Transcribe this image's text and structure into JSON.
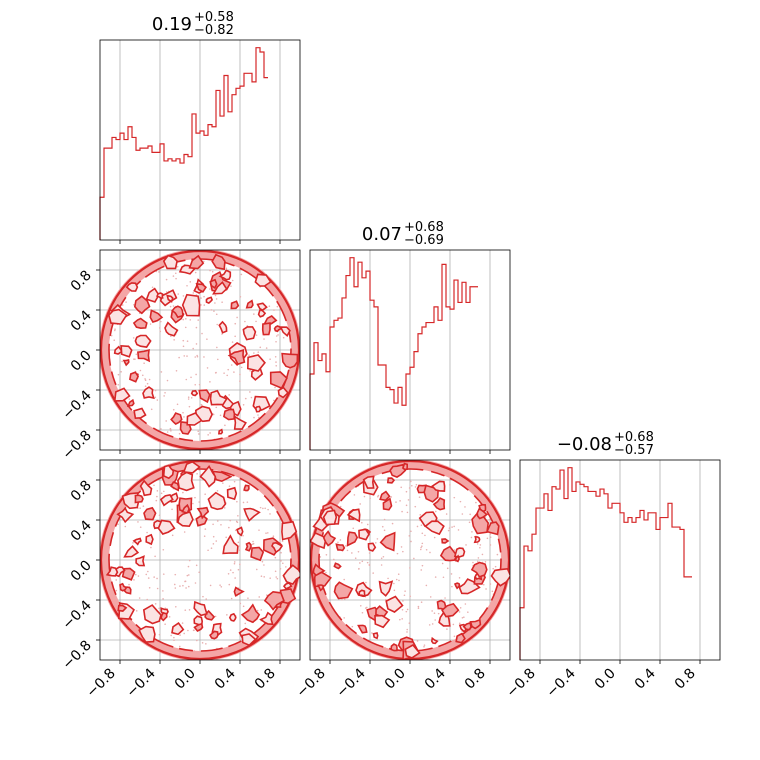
{
  "chart_data": {
    "type": "corner",
    "color": "#d62728",
    "fill_color": "#f4a6a6",
    "grid": true,
    "axis_range": [
      -1.0,
      1.0
    ],
    "tick_values": [
      -0.8,
      -0.4,
      0.0,
      0.4,
      0.8
    ],
    "tick_labels": [
      "−0.8",
      "−0.4",
      "0.0",
      "0.4",
      "0.8"
    ],
    "histograms": [
      {
        "title": {
          "median": "0.19",
          "plus": "+0.58",
          "minus": "−0.82"
        },
        "bin_edges_start": -1.0,
        "bin_width": 0.04,
        "values": [
          20,
          43,
          43,
          48,
          47,
          50,
          47,
          53,
          48,
          42,
          43,
          43,
          44,
          41,
          41,
          45,
          37,
          38,
          37,
          38,
          36,
          40,
          39,
          59,
          50,
          51,
          49,
          54,
          53,
          70,
          58,
          77,
          60,
          68,
          71,
          72,
          78,
          78,
          74,
          90,
          88,
          76
        ]
      },
      {
        "title": {
          "median": "0.07",
          "plus": "+0.68",
          "minus": "−0.69"
        },
        "bin_edges_start": -1.0,
        "bin_width": 0.04,
        "values": [
          34,
          48,
          40,
          43,
          35,
          55,
          58,
          59,
          68,
          78,
          86,
          73,
          84,
          77,
          80,
          67,
          64,
          38,
          38,
          28,
          27,
          21,
          28,
          20,
          34,
          37,
          44,
          52,
          55,
          57,
          57,
          64,
          58,
          83,
          64,
          63,
          76,
          66,
          75,
          66,
          73,
          73
        ]
      },
      {
        "title": {
          "median": "−0.08",
          "plus": "+0.68",
          "minus": "−0.57"
        },
        "bin_edges_start": -1.0,
        "bin_width": 0.04,
        "values": [
          22,
          48,
          46,
          53,
          64,
          64,
          70,
          63,
          73,
          72,
          80,
          68,
          81,
          71,
          75,
          74,
          73,
          71,
          71,
          69,
          72,
          70,
          64,
          66,
          66,
          62,
          58,
          60,
          58,
          60,
          63,
          59,
          62,
          62,
          55,
          60,
          60,
          66,
          56,
          56,
          55,
          35,
          35
        ]
      }
    ],
    "panels_2d": [
      {
        "row": 1,
        "col": 0,
        "x_param": 0,
        "y_param": 1
      },
      {
        "row": 2,
        "col": 0,
        "x_param": 0,
        "y_param": 2
      },
      {
        "row": 2,
        "col": 1,
        "x_param": 1,
        "y_param": 2
      }
    ]
  }
}
